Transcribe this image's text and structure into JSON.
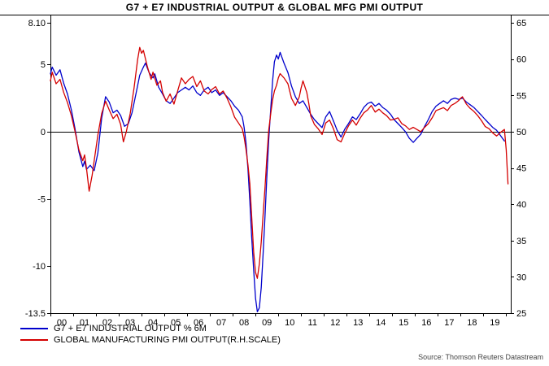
{
  "title": "G7 + E7 INDUSTRIAL OUTPUT & GLOBAL MFG PMI OUTPUT",
  "source": "Source: Thomson Reuters Datastream",
  "legend": [
    {
      "label": "G7 + E7 INDUSTRIAL OUTPUT % 6M",
      "color": "#0000cc"
    },
    {
      "label": "GLOBAL MANUFACTURING PMI OUTPUT(R.H.SCALE)",
      "color": "#d40000"
    }
  ],
  "chart_data": {
    "type": "line",
    "title": "G7 + E7 INDUSTRIAL OUTPUT & GLOBAL MFG PMI OUTPUT",
    "x_range": [
      2000,
      2020.2
    ],
    "x_tick_labels": [
      "00",
      "01",
      "02",
      "03",
      "04",
      "05",
      "06",
      "07",
      "08",
      "09",
      "10",
      "11",
      "12",
      "13",
      "14",
      "15",
      "16",
      "17",
      "18",
      "19"
    ],
    "left_axis": {
      "range": [
        -13.5,
        8.1
      ],
      "ticks": [
        {
          "label": "8.10",
          "value": 8.1
        },
        {
          "label": "5",
          "value": 5
        },
        {
          "label": "0",
          "value": 0
        },
        {
          "label": "-5",
          "value": -5
        },
        {
          "label": "-10",
          "value": -10
        },
        {
          "label": "-13.5",
          "value": -13.5
        }
      ]
    },
    "right_axis": {
      "range": [
        25,
        65
      ],
      "ticks": [
        {
          "label": "65",
          "value": 65
        },
        {
          "label": "60",
          "value": 60
        },
        {
          "label": "55",
          "value": 55
        },
        {
          "label": "50",
          "value": 50
        },
        {
          "label": "45",
          "value": 45
        },
        {
          "label": "40",
          "value": 40
        },
        {
          "label": "35",
          "value": 35
        },
        {
          "label": "30",
          "value": 30
        },
        {
          "label": "25",
          "value": 25
        }
      ]
    },
    "zero_line_left_value": 0,
    "grid": false,
    "legend_position": "bottom-left",
    "series": [
      {
        "name": "G7 + E7 INDUSTRIAL OUTPUT % 6M",
        "axis": "left",
        "color": "#0000cc",
        "points": [
          [
            2000.0,
            4.3
          ],
          [
            2000.08,
            4.8
          ],
          [
            2000.25,
            4.2
          ],
          [
            2000.42,
            4.6
          ],
          [
            2000.58,
            3.6
          ],
          [
            2000.75,
            2.8
          ],
          [
            2000.92,
            1.6
          ],
          [
            2001.08,
            0.2
          ],
          [
            2001.25,
            -1.5
          ],
          [
            2001.42,
            -2.6
          ],
          [
            2001.5,
            -2.2
          ],
          [
            2001.58,
            -2.8
          ],
          [
            2001.75,
            -2.5
          ],
          [
            2001.92,
            -2.9
          ],
          [
            2002.08,
            -1.6
          ],
          [
            2002.25,
            1.0
          ],
          [
            2002.42,
            2.6
          ],
          [
            2002.58,
            2.2
          ],
          [
            2002.75,
            1.4
          ],
          [
            2002.92,
            1.6
          ],
          [
            2003.08,
            1.2
          ],
          [
            2003.25,
            0.4
          ],
          [
            2003.42,
            0.6
          ],
          [
            2003.58,
            1.4
          ],
          [
            2003.75,
            2.8
          ],
          [
            2003.92,
            4.2
          ],
          [
            2004.08,
            4.8
          ],
          [
            2004.17,
            5.1
          ],
          [
            2004.33,
            4.4
          ],
          [
            2004.5,
            4.0
          ],
          [
            2004.58,
            4.3
          ],
          [
            2004.75,
            3.3
          ],
          [
            2004.92,
            2.8
          ],
          [
            2005.08,
            2.3
          ],
          [
            2005.25,
            2.1
          ],
          [
            2005.42,
            2.5
          ],
          [
            2005.58,
            2.9
          ],
          [
            2005.75,
            3.1
          ],
          [
            2005.92,
            3.3
          ],
          [
            2006.08,
            3.1
          ],
          [
            2006.25,
            3.4
          ],
          [
            2006.42,
            2.9
          ],
          [
            2006.58,
            2.7
          ],
          [
            2006.75,
            3.1
          ],
          [
            2006.92,
            3.3
          ],
          [
            2007.08,
            2.9
          ],
          [
            2007.25,
            3.1
          ],
          [
            2007.42,
            2.7
          ],
          [
            2007.58,
            2.9
          ],
          [
            2007.75,
            2.6
          ],
          [
            2007.92,
            2.3
          ],
          [
            2008.08,
            1.9
          ],
          [
            2008.25,
            1.6
          ],
          [
            2008.42,
            1.1
          ],
          [
            2008.5,
            0.3
          ],
          [
            2008.58,
            -0.8
          ],
          [
            2008.67,
            -2.8
          ],
          [
            2008.75,
            -5.2
          ],
          [
            2008.83,
            -7.8
          ],
          [
            2008.92,
            -10.3
          ],
          [
            2009.0,
            -12.4
          ],
          [
            2009.08,
            -13.4
          ],
          [
            2009.17,
            -13.1
          ],
          [
            2009.25,
            -11.6
          ],
          [
            2009.33,
            -9.2
          ],
          [
            2009.42,
            -6.2
          ],
          [
            2009.5,
            -3.2
          ],
          [
            2009.58,
            -0.6
          ],
          [
            2009.67,
            1.8
          ],
          [
            2009.75,
            3.8
          ],
          [
            2009.83,
            5.2
          ],
          [
            2009.92,
            5.7
          ],
          [
            2010.0,
            5.4
          ],
          [
            2010.08,
            5.9
          ],
          [
            2010.25,
            5.1
          ],
          [
            2010.42,
            4.4
          ],
          [
            2010.58,
            3.4
          ],
          [
            2010.75,
            2.6
          ],
          [
            2010.92,
            2.1
          ],
          [
            2011.08,
            2.3
          ],
          [
            2011.25,
            1.8
          ],
          [
            2011.42,
            1.3
          ],
          [
            2011.58,
            0.9
          ],
          [
            2011.75,
            0.6
          ],
          [
            2011.92,
            0.3
          ],
          [
            2012.08,
            1.1
          ],
          [
            2012.25,
            1.5
          ],
          [
            2012.42,
            0.8
          ],
          [
            2012.58,
            0.1
          ],
          [
            2012.75,
            -0.4
          ],
          [
            2012.92,
            0.2
          ],
          [
            2013.08,
            0.6
          ],
          [
            2013.25,
            1.1
          ],
          [
            2013.42,
            0.9
          ],
          [
            2013.58,
            1.3
          ],
          [
            2013.75,
            1.8
          ],
          [
            2013.92,
            2.1
          ],
          [
            2014.08,
            2.2
          ],
          [
            2014.25,
            1.9
          ],
          [
            2014.42,
            2.1
          ],
          [
            2014.58,
            1.8
          ],
          [
            2014.75,
            1.6
          ],
          [
            2014.92,
            1.3
          ],
          [
            2015.08,
            0.9
          ],
          [
            2015.25,
            0.6
          ],
          [
            2015.42,
            0.3
          ],
          [
            2015.58,
            0.0
          ],
          [
            2015.75,
            -0.5
          ],
          [
            2015.92,
            -0.8
          ],
          [
            2016.08,
            -0.5
          ],
          [
            2016.25,
            -0.2
          ],
          [
            2016.42,
            0.4
          ],
          [
            2016.58,
            0.9
          ],
          [
            2016.75,
            1.5
          ],
          [
            2016.92,
            1.9
          ],
          [
            2017.08,
            2.1
          ],
          [
            2017.25,
            2.3
          ],
          [
            2017.42,
            2.1
          ],
          [
            2017.58,
            2.4
          ],
          [
            2017.75,
            2.5
          ],
          [
            2017.92,
            2.4
          ],
          [
            2018.08,
            2.5
          ],
          [
            2018.25,
            2.2
          ],
          [
            2018.42,
            2.0
          ],
          [
            2018.58,
            1.8
          ],
          [
            2018.75,
            1.5
          ],
          [
            2018.92,
            1.2
          ],
          [
            2019.08,
            0.9
          ],
          [
            2019.25,
            0.6
          ],
          [
            2019.42,
            0.3
          ],
          [
            2019.58,
            0.1
          ],
          [
            2019.75,
            -0.3
          ],
          [
            2019.92,
            -0.7
          ]
        ]
      },
      {
        "name": "GLOBAL MANUFACTURING PMI OUTPUT(R.H.SCALE)",
        "axis": "right",
        "color": "#d40000",
        "points": [
          [
            2000.0,
            57.0
          ],
          [
            2000.08,
            58.2
          ],
          [
            2000.25,
            56.6
          ],
          [
            2000.42,
            57.2
          ],
          [
            2000.58,
            55.4
          ],
          [
            2000.75,
            54.0
          ],
          [
            2000.92,
            52.2
          ],
          [
            2001.08,
            50.0
          ],
          [
            2001.25,
            47.5
          ],
          [
            2001.42,
            46.0
          ],
          [
            2001.5,
            46.8
          ],
          [
            2001.58,
            45.0
          ],
          [
            2001.7,
            41.8
          ],
          [
            2001.83,
            44.0
          ],
          [
            2001.92,
            46.0
          ],
          [
            2002.08,
            49.5
          ],
          [
            2002.25,
            52.5
          ],
          [
            2002.42,
            54.2
          ],
          [
            2002.58,
            53.0
          ],
          [
            2002.75,
            51.8
          ],
          [
            2002.92,
            52.4
          ],
          [
            2003.08,
            51.0
          ],
          [
            2003.2,
            48.6
          ],
          [
            2003.33,
            50.0
          ],
          [
            2003.5,
            52.5
          ],
          [
            2003.67,
            56.0
          ],
          [
            2003.83,
            60.0
          ],
          [
            2003.92,
            61.6
          ],
          [
            2004.0,
            60.8
          ],
          [
            2004.08,
            61.2
          ],
          [
            2004.25,
            59.0
          ],
          [
            2004.42,
            57.2
          ],
          [
            2004.5,
            58.2
          ],
          [
            2004.67,
            56.4
          ],
          [
            2004.83,
            57.0
          ],
          [
            2004.92,
            55.4
          ],
          [
            2005.08,
            54.2
          ],
          [
            2005.25,
            55.2
          ],
          [
            2005.42,
            53.8
          ],
          [
            2005.58,
            55.6
          ],
          [
            2005.75,
            57.4
          ],
          [
            2005.92,
            56.6
          ],
          [
            2006.08,
            57.2
          ],
          [
            2006.25,
            57.6
          ],
          [
            2006.42,
            56.2
          ],
          [
            2006.58,
            57.0
          ],
          [
            2006.75,
            55.6
          ],
          [
            2006.92,
            55.2
          ],
          [
            2007.08,
            55.8
          ],
          [
            2007.25,
            56.2
          ],
          [
            2007.42,
            55.2
          ],
          [
            2007.58,
            55.6
          ],
          [
            2007.75,
            54.6
          ],
          [
            2007.92,
            53.4
          ],
          [
            2008.08,
            52.0
          ],
          [
            2008.25,
            51.2
          ],
          [
            2008.42,
            50.4
          ],
          [
            2008.5,
            49.2
          ],
          [
            2008.58,
            47.6
          ],
          [
            2008.67,
            45.4
          ],
          [
            2008.75,
            42.8
          ],
          [
            2008.83,
            38.4
          ],
          [
            2008.92,
            33.4
          ],
          [
            2009.0,
            30.6
          ],
          [
            2009.08,
            29.8
          ],
          [
            2009.17,
            31.8
          ],
          [
            2009.25,
            34.8
          ],
          [
            2009.33,
            38.4
          ],
          [
            2009.42,
            42.4
          ],
          [
            2009.5,
            46.6
          ],
          [
            2009.58,
            50.2
          ],
          [
            2009.67,
            52.6
          ],
          [
            2009.75,
            54.4
          ],
          [
            2009.83,
            55.6
          ],
          [
            2009.92,
            56.4
          ],
          [
            2010.0,
            57.4
          ],
          [
            2010.08,
            58.0
          ],
          [
            2010.25,
            57.4
          ],
          [
            2010.42,
            56.6
          ],
          [
            2010.58,
            54.6
          ],
          [
            2010.75,
            53.6
          ],
          [
            2010.92,
            54.8
          ],
          [
            2011.0,
            56.0
          ],
          [
            2011.08,
            57.0
          ],
          [
            2011.25,
            55.4
          ],
          [
            2011.33,
            54.0
          ],
          [
            2011.42,
            52.2
          ],
          [
            2011.58,
            51.0
          ],
          [
            2011.75,
            50.4
          ],
          [
            2011.92,
            49.6
          ],
          [
            2012.08,
            51.2
          ],
          [
            2012.25,
            51.6
          ],
          [
            2012.42,
            50.4
          ],
          [
            2012.58,
            48.9
          ],
          [
            2012.75,
            48.6
          ],
          [
            2012.92,
            49.8
          ],
          [
            2013.08,
            50.8
          ],
          [
            2013.25,
            51.6
          ],
          [
            2013.42,
            50.9
          ],
          [
            2013.58,
            51.8
          ],
          [
            2013.75,
            52.6
          ],
          [
            2013.92,
            53.0
          ],
          [
            2014.08,
            53.6
          ],
          [
            2014.25,
            52.7
          ],
          [
            2014.42,
            53.1
          ],
          [
            2014.58,
            52.6
          ],
          [
            2014.75,
            52.2
          ],
          [
            2014.92,
            51.6
          ],
          [
            2015.08,
            51.7
          ],
          [
            2015.25,
            51.9
          ],
          [
            2015.42,
            51.1
          ],
          [
            2015.58,
            50.8
          ],
          [
            2015.75,
            50.3
          ],
          [
            2015.92,
            50.6
          ],
          [
            2016.08,
            50.3
          ],
          [
            2016.25,
            50.0
          ],
          [
            2016.42,
            50.6
          ],
          [
            2016.58,
            51.1
          ],
          [
            2016.75,
            51.9
          ],
          [
            2016.92,
            52.9
          ],
          [
            2017.08,
            53.1
          ],
          [
            2017.25,
            53.3
          ],
          [
            2017.42,
            52.9
          ],
          [
            2017.58,
            53.6
          ],
          [
            2017.75,
            53.9
          ],
          [
            2017.92,
            54.3
          ],
          [
            2018.0,
            54.6
          ],
          [
            2018.08,
            54.8
          ],
          [
            2018.25,
            53.8
          ],
          [
            2018.42,
            53.2
          ],
          [
            2018.58,
            52.8
          ],
          [
            2018.75,
            52.2
          ],
          [
            2018.92,
            51.5
          ],
          [
            2019.08,
            50.7
          ],
          [
            2019.25,
            50.4
          ],
          [
            2019.42,
            49.8
          ],
          [
            2019.58,
            49.4
          ],
          [
            2019.75,
            49.9
          ],
          [
            2019.92,
            50.3
          ],
          [
            2020.0,
            47.5
          ],
          [
            2020.08,
            42.8
          ]
        ]
      }
    ]
  }
}
